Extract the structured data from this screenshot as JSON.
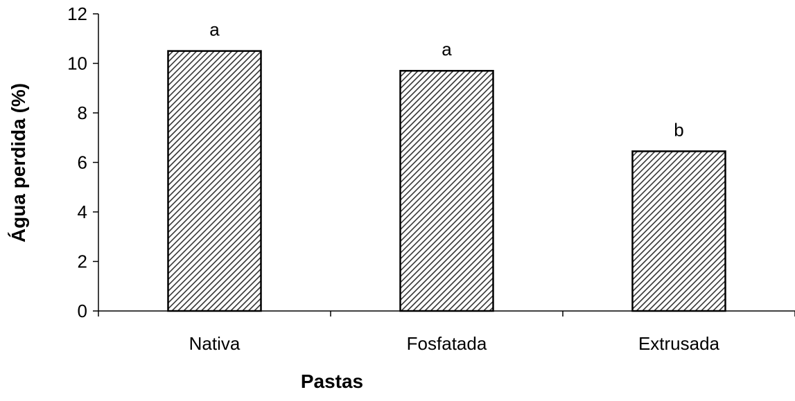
{
  "chart_data": {
    "type": "bar",
    "title": "",
    "xlabel": "Pastas",
    "ylabel": "Água perdida (%)",
    "categories": [
      "Nativa",
      "Fosfatada",
      "Extrusada"
    ],
    "values": [
      10.5,
      9.7,
      6.45
    ],
    "annotations": [
      "a",
      "a",
      "b"
    ],
    "ylim": [
      0,
      12
    ],
    "yticks": [
      "0",
      "2",
      "4",
      "6",
      "8",
      "10",
      "12"
    ],
    "grid": false,
    "legend": "none",
    "bar_fill": "diagonal-hatch",
    "colors": {
      "bar_stroke": "#000000",
      "hatch": "#333333",
      "axis": "#000000"
    }
  }
}
